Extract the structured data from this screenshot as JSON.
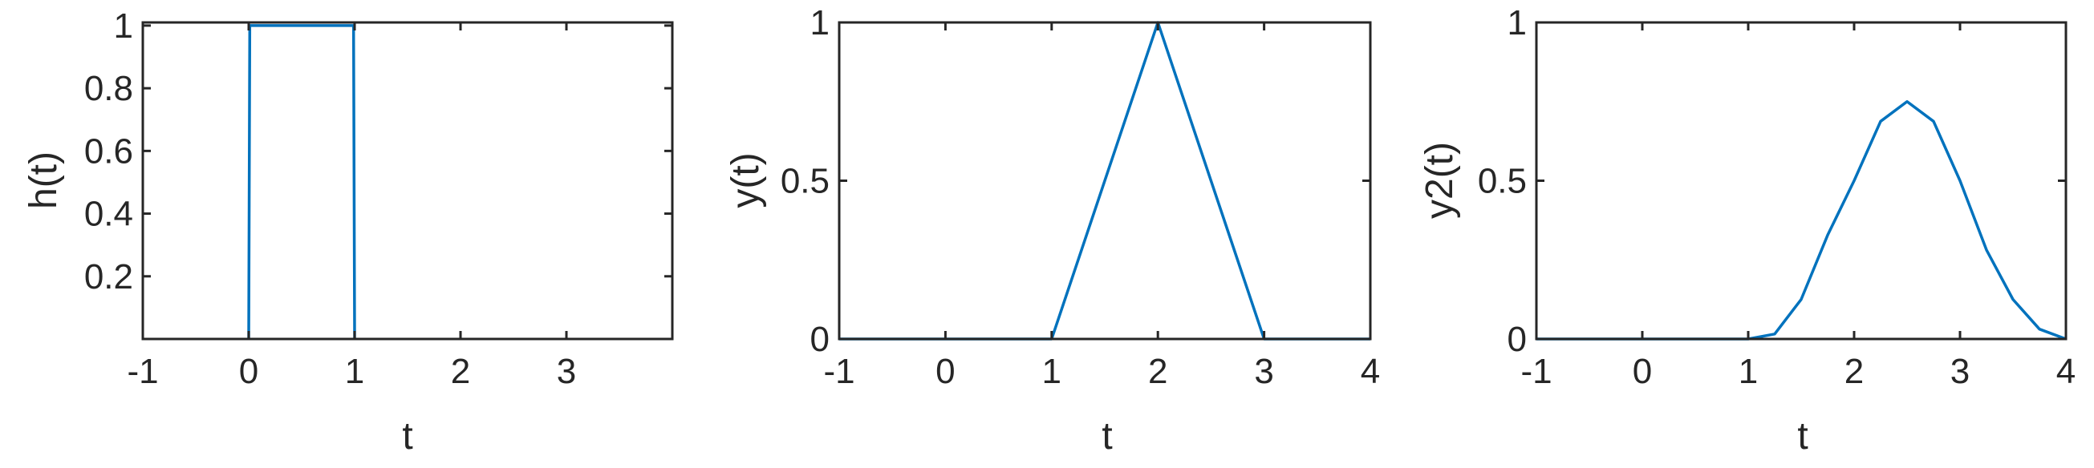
{
  "figure": {
    "background": "#ffffff",
    "axis_color": "#262626"
  },
  "chart_data": [
    {
      "type": "line",
      "title": "",
      "xlabel": "t",
      "ylabel": "h(t)",
      "xlim": [
        -1,
        4
      ],
      "ylim": [
        0,
        1.01
      ],
      "xticks": [
        -1,
        0,
        1,
        2,
        3
      ],
      "xtick_labels": [
        "-1",
        "0",
        "1",
        "2",
        "3"
      ],
      "yticks": [
        0.2,
        0.4,
        0.6,
        0.8,
        1
      ],
      "ytick_labels": [
        "0.2",
        "0.4",
        "0.6",
        "0.8",
        "1"
      ],
      "grid": false,
      "legend": "none",
      "series": [
        {
          "color": "#0072BD",
          "x": [
            0,
            0.01,
            0.99,
            1
          ],
          "y": [
            0,
            1,
            1,
            0
          ]
        }
      ]
    },
    {
      "type": "line",
      "title": "",
      "xlabel": "t",
      "ylabel": "y(t)",
      "xlim": [
        -1,
        4
      ],
      "ylim": [
        0,
        1
      ],
      "xticks": [
        -1,
        0,
        1,
        2,
        3,
        4
      ],
      "xtick_labels": [
        "-1",
        "0",
        "1",
        "2",
        "3",
        "4"
      ],
      "yticks": [
        0,
        0.5,
        1
      ],
      "ytick_labels": [
        "0",
        "0.5",
        "1"
      ],
      "grid": false,
      "legend": "none",
      "series": [
        {
          "color": "#0072BD",
          "x": [
            -1,
            1,
            2,
            3,
            4
          ],
          "y": [
            0,
            0,
            1,
            0,
            0
          ]
        }
      ]
    },
    {
      "type": "line",
      "title": "",
      "xlabel": "t",
      "ylabel": "y2(t)",
      "xlim": [
        -1,
        4
      ],
      "ylim": [
        0,
        1
      ],
      "xticks": [
        -1,
        0,
        1,
        2,
        3,
        4
      ],
      "xtick_labels": [
        "-1",
        "0",
        "1",
        "2",
        "3",
        "4"
      ],
      "yticks": [
        0,
        0.5,
        1
      ],
      "ytick_labels": [
        "0",
        "0.5",
        "1"
      ],
      "grid": false,
      "legend": "none",
      "series": [
        {
          "color": "#0072BD",
          "x": [
            -1,
            1,
            1.25,
            1.5,
            1.75,
            2,
            2.25,
            2.5,
            2.75,
            3,
            3.25,
            3.5,
            3.75,
            4
          ],
          "y": [
            0,
            0,
            0.0156,
            0.125,
            0.3281,
            0.5,
            0.6875,
            0.75,
            0.6875,
            0.5,
            0.2813,
            0.125,
            0.0312,
            0
          ]
        }
      ]
    }
  ]
}
